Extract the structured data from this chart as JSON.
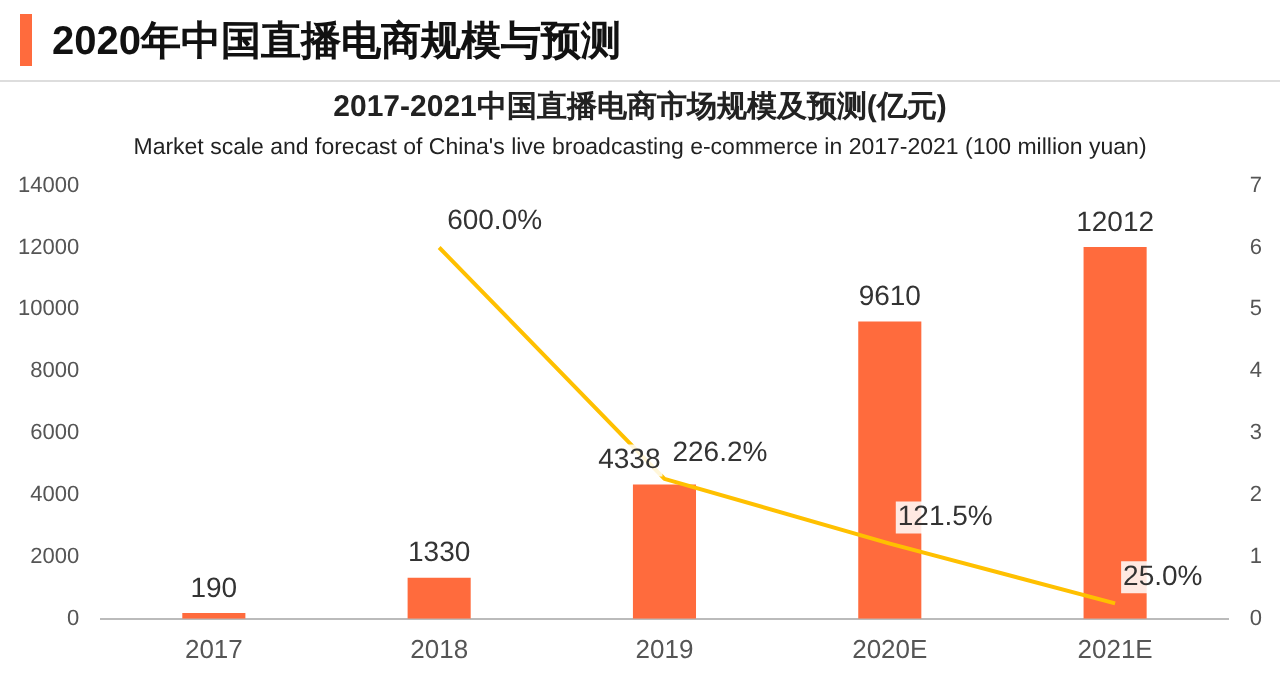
{
  "chart_data": {
    "type": "bar",
    "title": "2017-2021中国直播电商市场规模及预测(亿元)",
    "subtitle": "Market scale and forecast of China's live broadcasting e-commerce in 2017-2021 (100 million yuan)",
    "annotations": [
      "2020年中国直播电商规模与预测"
    ],
    "categories": [
      "2017",
      "2018",
      "2019",
      "2020E",
      "2021E"
    ],
    "series": [
      {
        "color": "#ff6b3d",
        "values": [
          190,
          1330,
          4338,
          9610,
          12012
        ],
        "value_labels": [
          "190",
          "1330",
          "4338",
          "9610",
          "12012"
        ]
      },
      {
        "type": "line",
        "axis": "y2",
        "color": "#ffc000",
        "values": [
          null,
          6,
          2.262,
          1.215,
          0.25
        ],
        "value_labels": [
          null,
          "600.0%",
          "226.2%",
          "121.5%",
          "25.0%"
        ]
      }
    ],
    "ylim": [
      0,
      14000
    ],
    "yticks": [
      0,
      2000,
      4000,
      6000,
      8000,
      10000,
      12000,
      14000
    ],
    "y2lim": [
      0,
      7
    ],
    "y2ticks": [
      0,
      1,
      2,
      3,
      4,
      5,
      6,
      7
    ],
    "grid": false,
    "legend": false,
    "marker": "none"
  }
}
